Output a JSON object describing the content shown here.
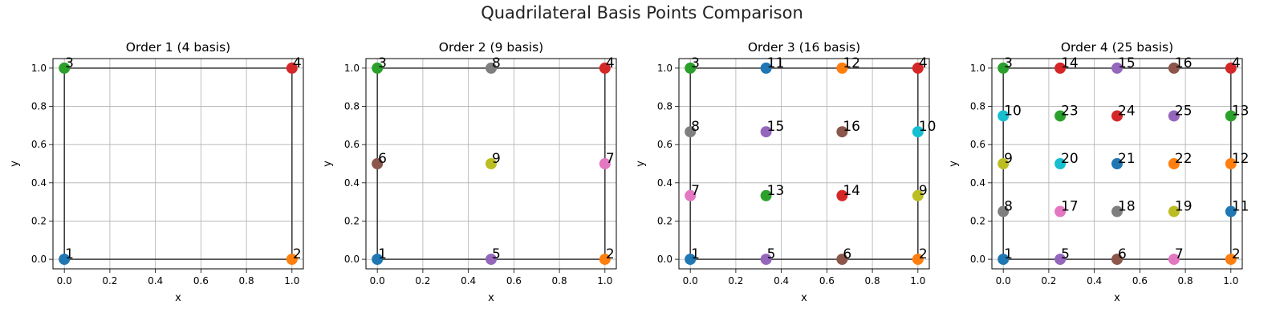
{
  "figure": {
    "title": "Quadrilateral Basis Points Comparison"
  },
  "chart_data": [
    {
      "type": "scatter",
      "title": "Order 1 (4 basis)",
      "xlabel": "x",
      "ylabel": "y",
      "xlim": [
        -0.05,
        1.05
      ],
      "ylim": [
        -0.05,
        1.05
      ],
      "xticks": [
        "0.0",
        "0.2",
        "0.4",
        "0.6",
        "0.8",
        "1.0"
      ],
      "yticks": [
        "0.0",
        "0.2",
        "0.4",
        "0.6",
        "0.8",
        "1.0"
      ],
      "grid": true,
      "points": [
        {
          "label": "1",
          "x": 0,
          "y": 0,
          "color": "#1f77b4"
        },
        {
          "label": "2",
          "x": 1,
          "y": 0,
          "color": "#ff7f0e"
        },
        {
          "label": "3",
          "x": 0,
          "y": 1,
          "color": "#2ca02c"
        },
        {
          "label": "4",
          "x": 1,
          "y": 1,
          "color": "#d62728"
        }
      ]
    },
    {
      "type": "scatter",
      "title": "Order 2 (9 basis)",
      "xlabel": "x",
      "ylabel": "y",
      "xlim": [
        -0.05,
        1.05
      ],
      "ylim": [
        -0.05,
        1.05
      ],
      "xticks": [
        "0.0",
        "0.2",
        "0.4",
        "0.6",
        "0.8",
        "1.0"
      ],
      "yticks": [
        "0.0",
        "0.2",
        "0.4",
        "0.6",
        "0.8",
        "1.0"
      ],
      "grid": true,
      "points": [
        {
          "label": "1",
          "x": 0,
          "y": 0,
          "color": "#1f77b4"
        },
        {
          "label": "2",
          "x": 1,
          "y": 0,
          "color": "#ff7f0e"
        },
        {
          "label": "3",
          "x": 0,
          "y": 1,
          "color": "#2ca02c"
        },
        {
          "label": "4",
          "x": 1,
          "y": 1,
          "color": "#d62728"
        },
        {
          "label": "5",
          "x": 0.5,
          "y": 0,
          "color": "#9467bd"
        },
        {
          "label": "6",
          "x": 0,
          "y": 0.5,
          "color": "#8c564b"
        },
        {
          "label": "7",
          "x": 1,
          "y": 0.5,
          "color": "#e377c2"
        },
        {
          "label": "8",
          "x": 0.5,
          "y": 1,
          "color": "#7f7f7f"
        },
        {
          "label": "9",
          "x": 0.5,
          "y": 0.5,
          "color": "#bcbd22"
        }
      ]
    },
    {
      "type": "scatter",
      "title": "Order 3 (16 basis)",
      "xlabel": "x",
      "ylabel": "y",
      "xlim": [
        -0.05,
        1.05
      ],
      "ylim": [
        -0.05,
        1.05
      ],
      "xticks": [
        "0.0",
        "0.2",
        "0.4",
        "0.6",
        "0.8",
        "1.0"
      ],
      "yticks": [
        "0.0",
        "0.2",
        "0.4",
        "0.6",
        "0.8",
        "1.0"
      ],
      "grid": true,
      "points": [
        {
          "label": "1",
          "x": 0,
          "y": 0,
          "color": "#1f77b4"
        },
        {
          "label": "2",
          "x": 1,
          "y": 0,
          "color": "#ff7f0e"
        },
        {
          "label": "3",
          "x": 0,
          "y": 1,
          "color": "#2ca02c"
        },
        {
          "label": "4",
          "x": 1,
          "y": 1,
          "color": "#d62728"
        },
        {
          "label": "5",
          "x": 0.333,
          "y": 0,
          "color": "#9467bd"
        },
        {
          "label": "6",
          "x": 0.667,
          "y": 0,
          "color": "#8c564b"
        },
        {
          "label": "7",
          "x": 0,
          "y": 0.333,
          "color": "#e377c2"
        },
        {
          "label": "8",
          "x": 0,
          "y": 0.667,
          "color": "#7f7f7f"
        },
        {
          "label": "9",
          "x": 1,
          "y": 0.333,
          "color": "#bcbd22"
        },
        {
          "label": "10",
          "x": 1,
          "y": 0.667,
          "color": "#17becf"
        },
        {
          "label": "11",
          "x": 0.333,
          "y": 1,
          "color": "#1f77b4"
        },
        {
          "label": "12",
          "x": 0.667,
          "y": 1,
          "color": "#ff7f0e"
        },
        {
          "label": "13",
          "x": 0.333,
          "y": 0.333,
          "color": "#2ca02c"
        },
        {
          "label": "14",
          "x": 0.667,
          "y": 0.333,
          "color": "#d62728"
        },
        {
          "label": "15",
          "x": 0.333,
          "y": 0.667,
          "color": "#9467bd"
        },
        {
          "label": "16",
          "x": 0.667,
          "y": 0.667,
          "color": "#8c564b"
        }
      ]
    },
    {
      "type": "scatter",
      "title": "Order 4 (25 basis)",
      "xlabel": "x",
      "ylabel": "y",
      "xlim": [
        -0.05,
        1.05
      ],
      "ylim": [
        -0.05,
        1.05
      ],
      "xticks": [
        "0.0",
        "0.2",
        "0.4",
        "0.6",
        "0.8",
        "1.0"
      ],
      "yticks": [
        "0.0",
        "0.2",
        "0.4",
        "0.6",
        "0.8",
        "1.0"
      ],
      "grid": true,
      "points": [
        {
          "label": "1",
          "x": 0,
          "y": 0,
          "color": "#1f77b4"
        },
        {
          "label": "2",
          "x": 1,
          "y": 0,
          "color": "#ff7f0e"
        },
        {
          "label": "3",
          "x": 0,
          "y": 1,
          "color": "#2ca02c"
        },
        {
          "label": "4",
          "x": 1,
          "y": 1,
          "color": "#d62728"
        },
        {
          "label": "5",
          "x": 0.25,
          "y": 0,
          "color": "#9467bd"
        },
        {
          "label": "6",
          "x": 0.5,
          "y": 0,
          "color": "#8c564b"
        },
        {
          "label": "7",
          "x": 0.75,
          "y": 0,
          "color": "#e377c2"
        },
        {
          "label": "8",
          "x": 0,
          "y": 0.25,
          "color": "#7f7f7f"
        },
        {
          "label": "9",
          "x": 0,
          "y": 0.5,
          "color": "#bcbd22"
        },
        {
          "label": "10",
          "x": 0,
          "y": 0.75,
          "color": "#17becf"
        },
        {
          "label": "11",
          "x": 1,
          "y": 0.25,
          "color": "#1f77b4"
        },
        {
          "label": "12",
          "x": 1,
          "y": 0.5,
          "color": "#ff7f0e"
        },
        {
          "label": "13",
          "x": 1,
          "y": 0.75,
          "color": "#2ca02c"
        },
        {
          "label": "14",
          "x": 0.25,
          "y": 1,
          "color": "#d62728"
        },
        {
          "label": "15",
          "x": 0.5,
          "y": 1,
          "color": "#9467bd"
        },
        {
          "label": "16",
          "x": 0.75,
          "y": 1,
          "color": "#8c564b"
        },
        {
          "label": "17",
          "x": 0.25,
          "y": 0.25,
          "color": "#e377c2"
        },
        {
          "label": "18",
          "x": 0.5,
          "y": 0.25,
          "color": "#7f7f7f"
        },
        {
          "label": "19",
          "x": 0.75,
          "y": 0.25,
          "color": "#bcbd22"
        },
        {
          "label": "20",
          "x": 0.25,
          "y": 0.5,
          "color": "#17becf"
        },
        {
          "label": "21",
          "x": 0.5,
          "y": 0.5,
          "color": "#1f77b4"
        },
        {
          "label": "22",
          "x": 0.75,
          "y": 0.5,
          "color": "#ff7f0e"
        },
        {
          "label": "23",
          "x": 0.25,
          "y": 0.75,
          "color": "#2ca02c"
        },
        {
          "label": "24",
          "x": 0.5,
          "y": 0.75,
          "color": "#d62728"
        },
        {
          "label": "25",
          "x": 0.75,
          "y": 0.75,
          "color": "#9467bd"
        }
      ]
    }
  ]
}
